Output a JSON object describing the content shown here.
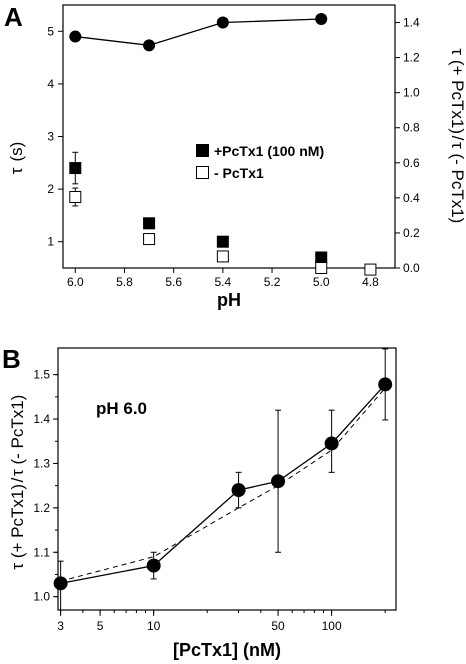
{
  "figure": {
    "panels": [
      {
        "label": "A"
      },
      {
        "label": "B"
      }
    ]
  },
  "chart_data": [
    {
      "type": "scatter",
      "panel": "A",
      "xlabel": "pH",
      "ylabel_left": {
        "symbol": "τ",
        "unit": "(s)"
      },
      "ylabel_right": {
        "num": "τ (+ PcTx1)",
        "den": "τ (- PcTx1)"
      },
      "xlim": [
        6.05,
        4.7
      ],
      "x_reversed": true,
      "xticks": [
        "6.0",
        "5.8",
        "5.6",
        "5.4",
        "5.2",
        "5.0",
        "4.8"
      ],
      "ylim_left": [
        0.5,
        5.5
      ],
      "yticks_left": [
        "1",
        "2",
        "3",
        "4",
        "5"
      ],
      "ylim_right": [
        0,
        1.5
      ],
      "yticks_right": [
        "0.0",
        "0.2",
        "0.4",
        "0.6",
        "0.8",
        "1.0",
        "1.2",
        "1.4"
      ],
      "legend": {
        "position": "center-right"
      },
      "series": [
        {
          "name": "+PcTx1 (100 nM)",
          "axis": "left",
          "marker": "filled-square",
          "x": [
            6.0,
            5.7,
            5.4,
            5.0
          ],
          "y": [
            2.4,
            1.35,
            1.0,
            0.7
          ],
          "err": [
            0.3,
            0,
            0,
            0
          ]
        },
        {
          "name": "- PcTx1",
          "axis": "left",
          "marker": "open-square",
          "x": [
            6.0,
            5.7,
            5.4,
            5.0,
            4.8
          ],
          "y": [
            1.85,
            1.05,
            0.72,
            0.5,
            0.47
          ],
          "err": [
            0.17,
            0,
            0,
            0,
            0
          ]
        },
        {
          "axis": "right",
          "marker": "filled-circle",
          "line": "solid",
          "x": [
            6.0,
            5.7,
            5.4,
            5.0
          ],
          "y": [
            1.32,
            1.27,
            1.4,
            1.42
          ]
        }
      ]
    },
    {
      "type": "line",
      "panel": "B",
      "xlabel": "[PcTx1] (nM)",
      "ylabel": {
        "num": "τ (+ PcTx1)",
        "den": "τ (- PcTx1)"
      },
      "xscale": "log",
      "xlim": [
        2.9,
        230
      ],
      "xticks": [
        3,
        5,
        10,
        50,
        100
      ],
      "xtick_labels": [
        "3",
        "5",
        "10",
        "50",
        "100"
      ],
      "ylim": [
        0.97,
        1.56
      ],
      "yticks": [
        "1.0",
        "1.1",
        "1.2",
        "1.3",
        "1.4",
        "1.5"
      ],
      "annotation": "pH 6.0",
      "series": [
        {
          "marker": "filled-circle",
          "line": "solid",
          "x": [
            3,
            10,
            30,
            50,
            100,
            200
          ],
          "y": [
            1.03,
            1.07,
            1.24,
            1.26,
            1.345,
            1.478
          ],
          "err_low": [
            0.06,
            0.03,
            0.04,
            0.16,
            0.065,
            0.08
          ],
          "err_high": [
            0.05,
            0.03,
            0.04,
            0.16,
            0.075,
            0.08
          ]
        },
        {
          "line": "dashed",
          "x": [
            3,
            10,
            30,
            50,
            100,
            200
          ],
          "y": [
            1.035,
            1.09,
            1.2,
            1.25,
            1.33,
            1.47
          ]
        }
      ]
    }
  ]
}
